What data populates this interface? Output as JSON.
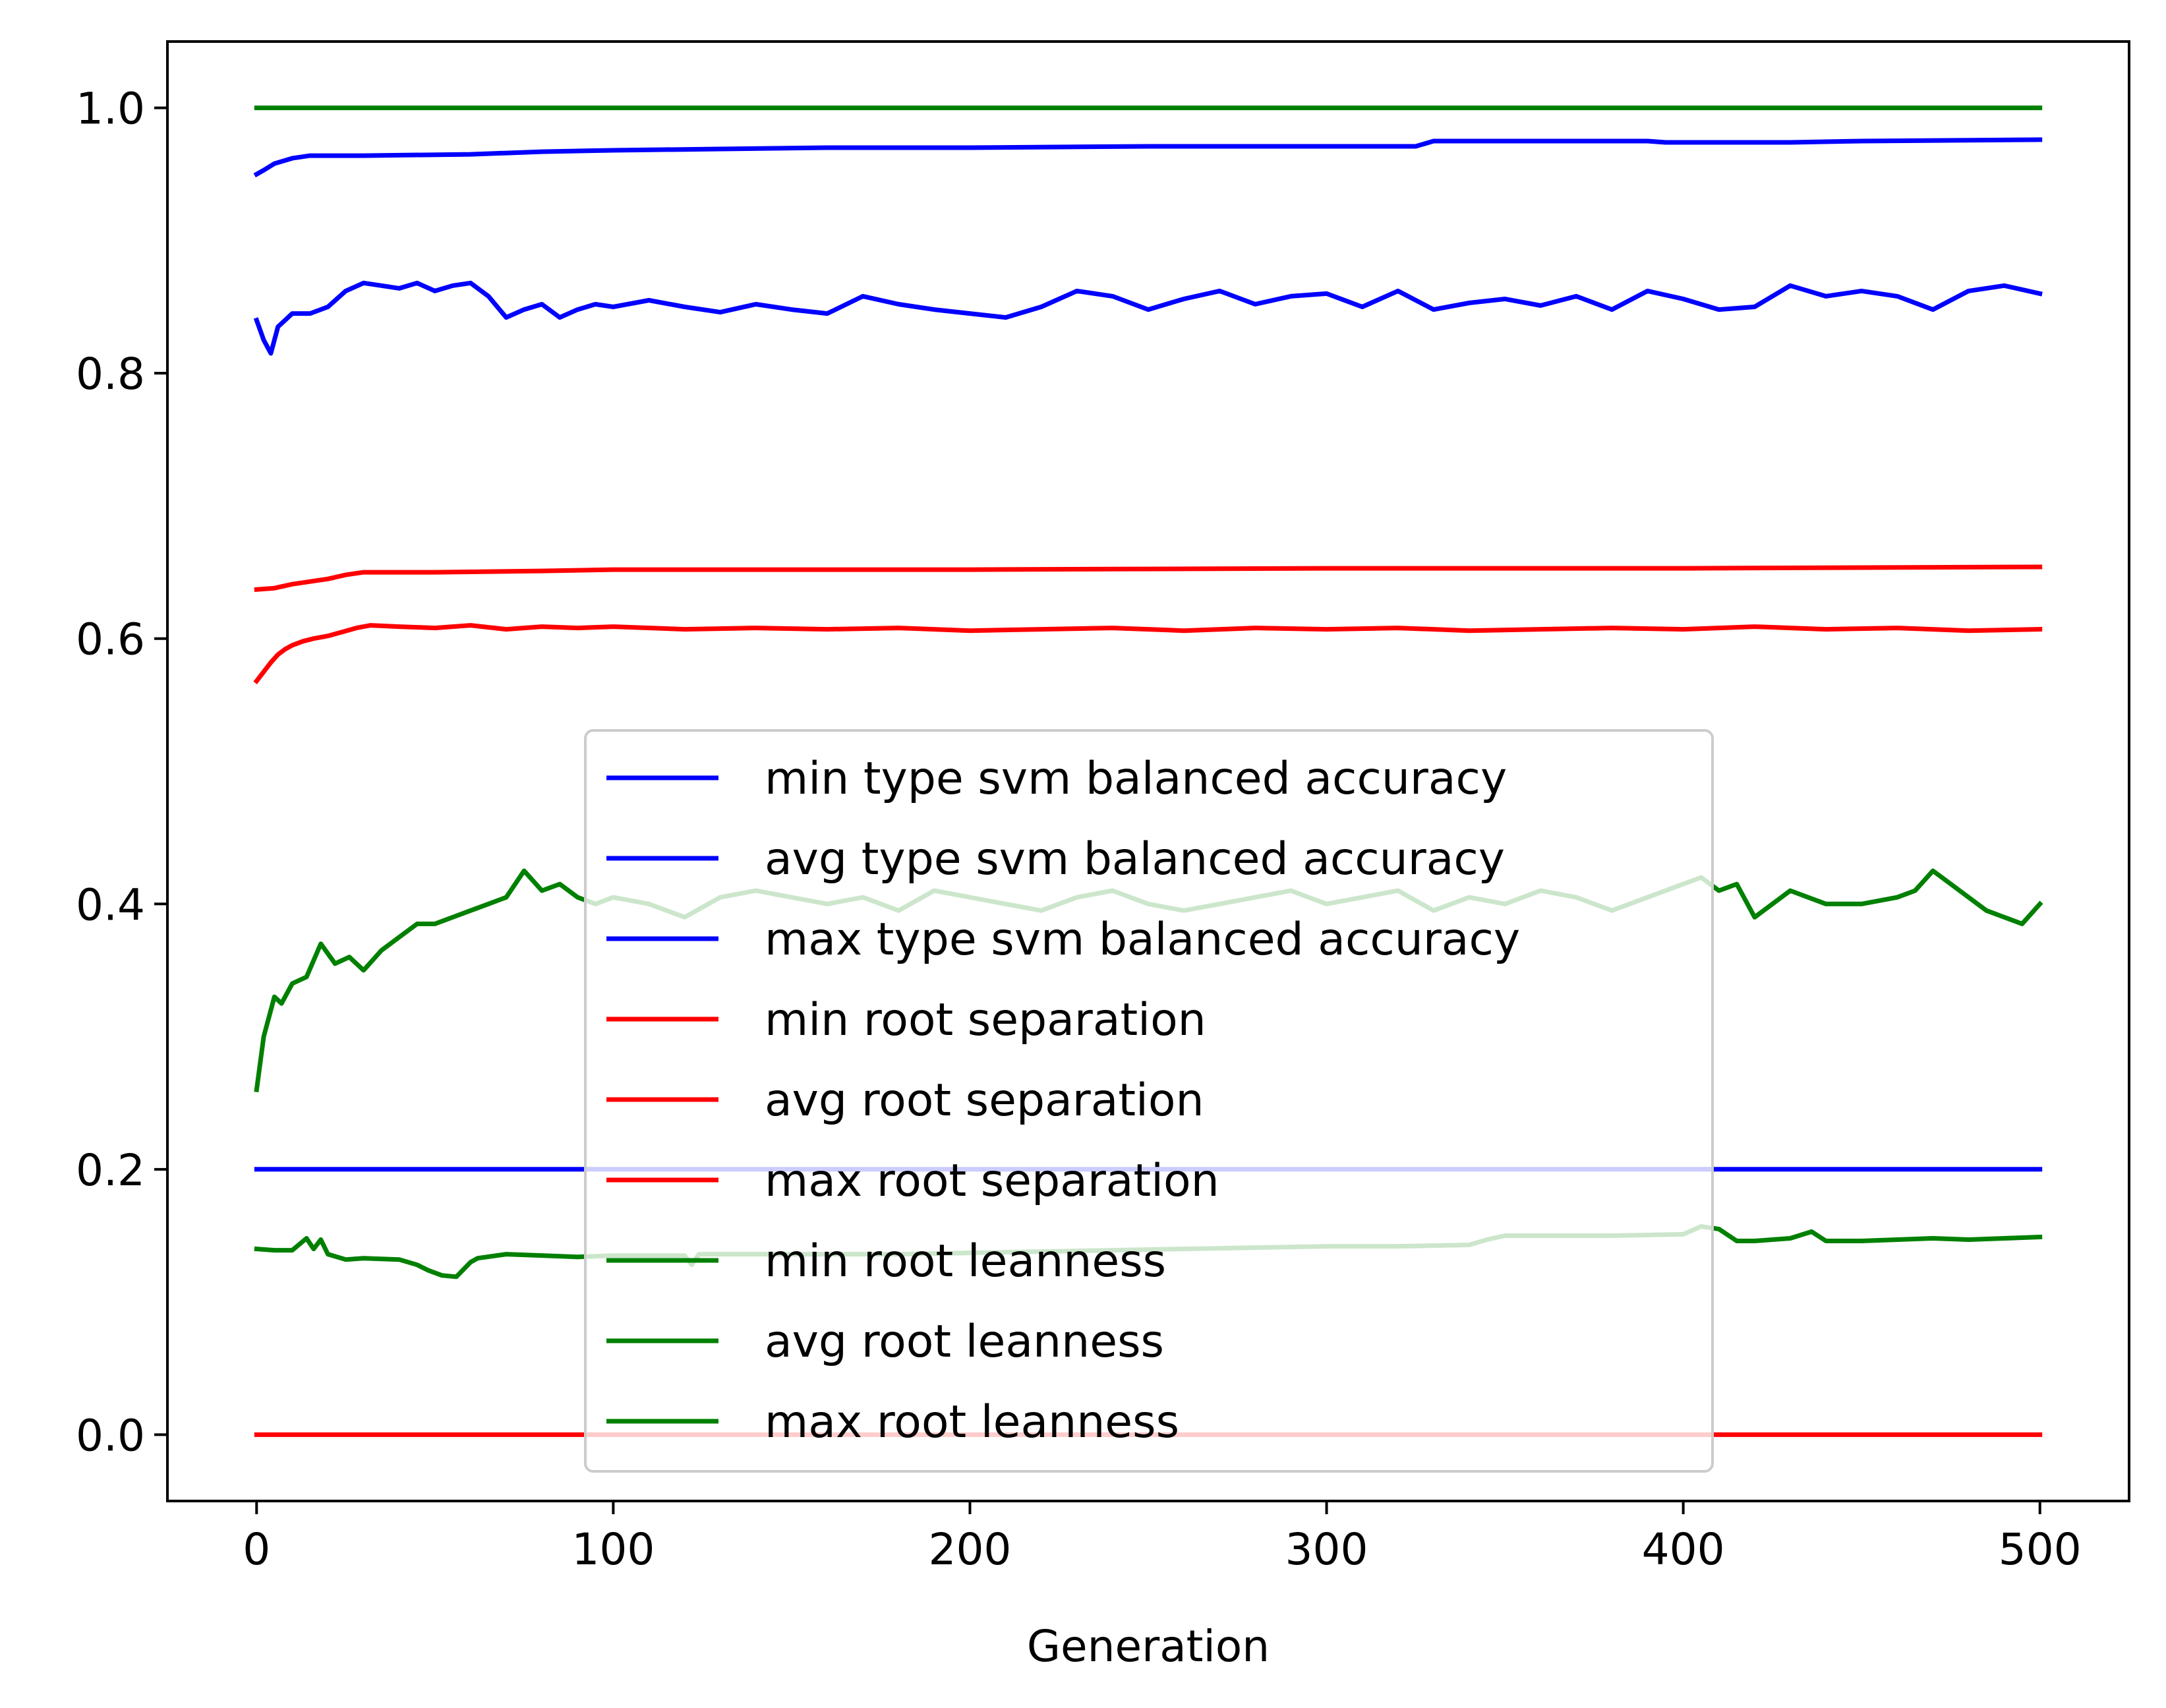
{
  "chart_data": {
    "type": "line",
    "title": "",
    "xlabel": "Generation",
    "ylabel": "",
    "xlim": [
      -25,
      525
    ],
    "ylim": [
      -0.05,
      1.05
    ],
    "x_ticks": [
      0,
      100,
      200,
      300,
      400,
      500
    ],
    "x_tick_labels": [
      "0",
      "100",
      "200",
      "300",
      "400",
      "500"
    ],
    "y_ticks": [
      0.0,
      0.2,
      0.4,
      0.6,
      0.8,
      1.0
    ],
    "y_tick_labels": [
      "0.0",
      "0.2",
      "0.4",
      "0.6",
      "0.8",
      "1.0"
    ],
    "grid": false,
    "legend_position": "lower-center",
    "colors": {
      "blue": "#0000ff",
      "red": "#ff0000",
      "green": "#008000"
    },
    "series": [
      {
        "name": "min type svm balanced accuracy",
        "color": "#0000ff",
        "x": [
          0,
          500
        ],
        "y": [
          0.2,
          0.2
        ]
      },
      {
        "name": "avg type svm balanced accuracy",
        "color": "#0000ff",
        "x": [
          0,
          2,
          4,
          6,
          8,
          10,
          15,
          20,
          25,
          30,
          35,
          40,
          45,
          50,
          55,
          60,
          65,
          70,
          75,
          80,
          85,
          90,
          95,
          100,
          110,
          120,
          130,
          140,
          150,
          160,
          170,
          180,
          190,
          200,
          210,
          220,
          230,
          240,
          250,
          260,
          270,
          280,
          290,
          300,
          310,
          320,
          330,
          340,
          350,
          360,
          370,
          380,
          390,
          400,
          410,
          420,
          430,
          440,
          450,
          460,
          470,
          480,
          490,
          500
        ],
        "y": [
          0.84,
          0.825,
          0.815,
          0.835,
          0.84,
          0.845,
          0.845,
          0.85,
          0.862,
          0.868,
          0.866,
          0.864,
          0.868,
          0.862,
          0.866,
          0.868,
          0.858,
          0.842,
          0.848,
          0.852,
          0.842,
          0.848,
          0.852,
          0.85,
          0.855,
          0.85,
          0.846,
          0.852,
          0.848,
          0.845,
          0.858,
          0.852,
          0.848,
          0.845,
          0.842,
          0.85,
          0.862,
          0.858,
          0.848,
          0.856,
          0.862,
          0.852,
          0.858,
          0.86,
          0.85,
          0.862,
          0.848,
          0.853,
          0.856,
          0.851,
          0.858,
          0.848,
          0.862,
          0.856,
          0.848,
          0.85,
          0.866,
          0.858,
          0.862,
          0.858,
          0.848,
          0.862,
          0.866,
          0.86
        ]
      },
      {
        "name": "max type svm balanced accuracy",
        "color": "#0000ff",
        "x": [
          0,
          2,
          5,
          10,
          15,
          30,
          60,
          80,
          100,
          130,
          160,
          200,
          250,
          300,
          325,
          330,
          390,
          395,
          430,
          450,
          500
        ],
        "y": [
          0.95,
          0.953,
          0.958,
          0.962,
          0.964,
          0.964,
          0.965,
          0.967,
          0.968,
          0.969,
          0.97,
          0.97,
          0.971,
          0.971,
          0.971,
          0.975,
          0.975,
          0.974,
          0.974,
          0.975,
          0.976
        ]
      },
      {
        "name": "min root separation",
        "color": "#ff0000",
        "x": [
          0,
          500
        ],
        "y": [
          0.0,
          0.0
        ]
      },
      {
        "name": "avg root separation",
        "color": "#ff0000",
        "x": [
          0,
          2,
          4,
          6,
          8,
          10,
          13,
          16,
          20,
          24,
          28,
          32,
          40,
          50,
          60,
          70,
          80,
          90,
          100,
          120,
          140,
          160,
          180,
          200,
          220,
          240,
          260,
          280,
          300,
          320,
          340,
          360,
          380,
          400,
          420,
          440,
          460,
          480,
          500
        ],
        "y": [
          0.568,
          0.575,
          0.582,
          0.588,
          0.592,
          0.595,
          0.598,
          0.6,
          0.602,
          0.605,
          0.608,
          0.61,
          0.609,
          0.608,
          0.61,
          0.607,
          0.609,
          0.608,
          0.609,
          0.607,
          0.608,
          0.607,
          0.608,
          0.606,
          0.607,
          0.608,
          0.606,
          0.608,
          0.607,
          0.608,
          0.606,
          0.607,
          0.608,
          0.607,
          0.609,
          0.607,
          0.608,
          0.606,
          0.607
        ]
      },
      {
        "name": "max root separation",
        "color": "#ff0000",
        "x": [
          0,
          5,
          10,
          15,
          20,
          25,
          30,
          50,
          80,
          100,
          200,
          300,
          350,
          400,
          500
        ],
        "y": [
          0.637,
          0.638,
          0.641,
          0.643,
          0.645,
          0.648,
          0.65,
          0.65,
          0.651,
          0.652,
          0.652,
          0.653,
          0.653,
          0.653,
          0.654
        ]
      },
      {
        "name": "min root leanness",
        "color": "#008000",
        "x": [
          0,
          5,
          10,
          14,
          16,
          18,
          20,
          25,
          30,
          40,
          45,
          48,
          52,
          56,
          60,
          62,
          70,
          80,
          90,
          100,
          120,
          122,
          124,
          130,
          160,
          180,
          200,
          220,
          240,
          260,
          280,
          300,
          320,
          340,
          345,
          350,
          380,
          400,
          405,
          410,
          415,
          420,
          430,
          436,
          440,
          450,
          460,
          470,
          480,
          490,
          500
        ],
        "y": [
          0.14,
          0.139,
          0.139,
          0.148,
          0.14,
          0.147,
          0.136,
          0.132,
          0.133,
          0.132,
          0.128,
          0.124,
          0.12,
          0.119,
          0.13,
          0.133,
          0.136,
          0.135,
          0.134,
          0.135,
          0.135,
          0.128,
          0.136,
          0.136,
          0.136,
          0.136,
          0.137,
          0.138,
          0.139,
          0.14,
          0.141,
          0.142,
          0.142,
          0.143,
          0.147,
          0.15,
          0.15,
          0.151,
          0.157,
          0.155,
          0.146,
          0.146,
          0.148,
          0.153,
          0.146,
          0.146,
          0.147,
          0.148,
          0.147,
          0.148,
          0.149
        ]
      },
      {
        "name": "avg root leanness",
        "color": "#008000",
        "x": [
          0,
          1,
          2,
          3,
          5,
          7,
          10,
          14,
          18,
          22,
          26,
          30,
          35,
          40,
          45,
          50,
          55,
          60,
          65,
          70,
          75,
          80,
          85,
          90,
          95,
          100,
          110,
          120,
          130,
          140,
          150,
          160,
          170,
          180,
          190,
          200,
          210,
          220,
          230,
          240,
          250,
          260,
          270,
          280,
          290,
          300,
          310,
          320,
          330,
          340,
          350,
          360,
          370,
          380,
          390,
          400,
          405,
          410,
          415,
          420,
          425,
          430,
          440,
          450,
          460,
          465,
          470,
          475,
          480,
          485,
          490,
          495,
          500
        ],
        "y": [
          0.26,
          0.28,
          0.3,
          0.31,
          0.33,
          0.325,
          0.34,
          0.345,
          0.37,
          0.355,
          0.36,
          0.35,
          0.365,
          0.375,
          0.385,
          0.385,
          0.39,
          0.395,
          0.4,
          0.405,
          0.425,
          0.41,
          0.415,
          0.405,
          0.4,
          0.405,
          0.4,
          0.39,
          0.405,
          0.41,
          0.405,
          0.4,
          0.405,
          0.395,
          0.41,
          0.405,
          0.4,
          0.395,
          0.405,
          0.41,
          0.4,
          0.395,
          0.4,
          0.405,
          0.41,
          0.4,
          0.405,
          0.41,
          0.395,
          0.405,
          0.4,
          0.41,
          0.405,
          0.395,
          0.405,
          0.415,
          0.42,
          0.41,
          0.415,
          0.39,
          0.4,
          0.41,
          0.4,
          0.4,
          0.405,
          0.41,
          0.425,
          0.415,
          0.405,
          0.395,
          0.39,
          0.385,
          0.4
        ]
      },
      {
        "name": "max root leanness",
        "color": "#008000",
        "x": [
          0,
          500
        ],
        "y": [
          1.0,
          1.0
        ]
      }
    ]
  }
}
